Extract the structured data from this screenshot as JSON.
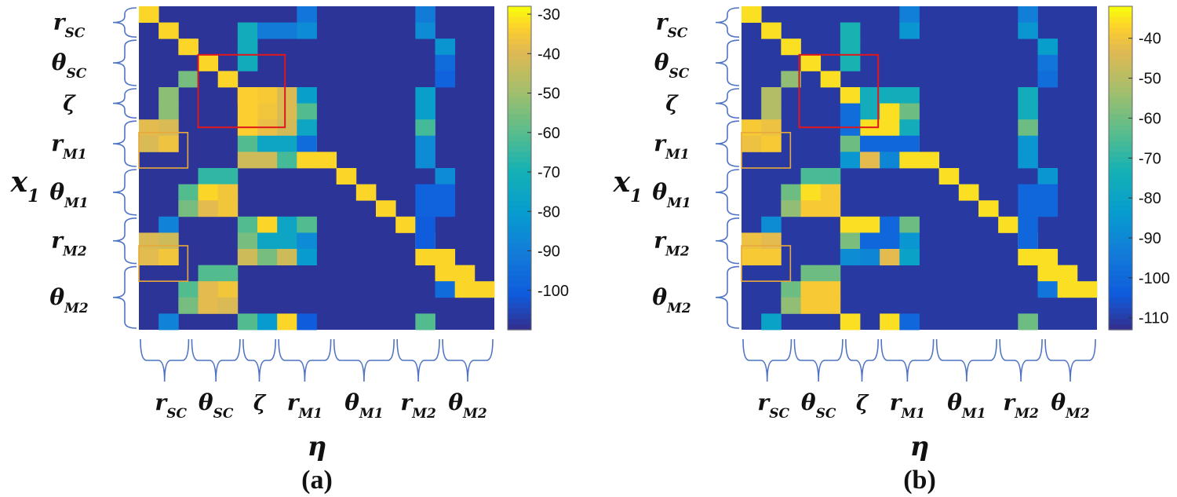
{
  "panels": [
    {
      "caption": "(a)",
      "colorbar_ticks": [
        "-30",
        "-40",
        "-50",
        "-60",
        "-70",
        "-80",
        "-90",
        "-100"
      ],
      "colorbar_range": [
        -110,
        -28
      ]
    },
    {
      "caption": "(b)",
      "colorbar_ticks": [
        "-40",
        "-50",
        "-60",
        "-70",
        "-80",
        "-90",
        "-100",
        "-110"
      ],
      "colorbar_range": [
        -113,
        -32
      ]
    }
  ],
  "axes": {
    "x_axis_symbol": "η",
    "y_axis_symbol": "x",
    "y_axis_subscript": "1",
    "y_groups": [
      {
        "sym": "r",
        "sub": "SC"
      },
      {
        "sym": "θ",
        "sub": "SC"
      },
      {
        "sym": "ζ",
        "sub": ""
      },
      {
        "sym": "r",
        "sub": "M1"
      },
      {
        "sym": "θ",
        "sub": "M1"
      },
      {
        "sym": "r",
        "sub": "M2"
      },
      {
        "sym": "θ",
        "sub": "M2"
      }
    ],
    "x_groups": [
      {
        "sym": "r",
        "sub": "SC"
      },
      {
        "sym": "θ",
        "sub": "SC"
      },
      {
        "sym": "ζ",
        "sub": ""
      },
      {
        "sym": "r",
        "sub": "M1"
      },
      {
        "sym": "θ",
        "sub": "M1"
      },
      {
        "sym": "r",
        "sub": "M2"
      },
      {
        "sym": "θ",
        "sub": "M2"
      }
    ]
  },
  "chart_data": [
    {
      "type": "heatmap",
      "title": "(a)",
      "xlabel": "η",
      "ylabel": "x1",
      "rows": 18,
      "cols": 18,
      "background_value": -108,
      "cells": [
        [
          0,
          0,
          -32
        ],
        [
          1,
          1,
          -32
        ],
        [
          2,
          2,
          -32
        ],
        [
          3,
          3,
          -32
        ],
        [
          4,
          4,
          -32
        ],
        [
          5,
          5,
          -32
        ],
        [
          6,
          6,
          -32
        ],
        [
          7,
          7,
          -32
        ],
        [
          8,
          8,
          -32
        ],
        [
          9,
          9,
          -32
        ],
        [
          10,
          10,
          -32
        ],
        [
          11,
          11,
          -32
        ],
        [
          12,
          12,
          -32
        ],
        [
          13,
          13,
          -32
        ],
        [
          14,
          14,
          -32
        ],
        [
          15,
          15,
          -32
        ],
        [
          16,
          16,
          -32
        ],
        [
          17,
          17,
          -32
        ],
        [
          1,
          5,
          -72
        ],
        [
          1,
          6,
          -90
        ],
        [
          1,
          7,
          -90
        ],
        [
          2,
          5,
          -72
        ],
        [
          3,
          5,
          -72
        ],
        [
          0,
          8,
          -92
        ],
        [
          1,
          8,
          -85
        ],
        [
          0,
          14,
          -90
        ],
        [
          1,
          14,
          -85
        ],
        [
          2,
          15,
          -82
        ],
        [
          3,
          15,
          -95
        ],
        [
          4,
          15,
          -98
        ],
        [
          4,
          2,
          -55
        ],
        [
          5,
          1,
          -52
        ],
        [
          6,
          1,
          -52
        ],
        [
          5,
          6,
          -34
        ],
        [
          5,
          7,
          -40
        ],
        [
          6,
          6,
          -35
        ],
        [
          6,
          7,
          -40
        ],
        [
          7,
          6,
          -37
        ],
        [
          7,
          7,
          -41
        ],
        [
          5,
          5,
          -33
        ],
        [
          6,
          5,
          -33
        ],
        [
          7,
          5,
          -33
        ],
        [
          5,
          8,
          -78
        ],
        [
          6,
          8,
          -60
        ],
        [
          7,
          8,
          -75
        ],
        [
          5,
          14,
          -78
        ],
        [
          6,
          14,
          -78
        ],
        [
          7,
          14,
          -62
        ],
        [
          7,
          0,
          -38
        ],
        [
          7,
          1,
          -40
        ],
        [
          8,
          0,
          -40
        ],
        [
          8,
          1,
          -36
        ],
        [
          8,
          5,
          -60
        ],
        [
          8,
          6,
          -75
        ],
        [
          8,
          7,
          -75
        ],
        [
          9,
          5,
          -42
        ],
        [
          9,
          6,
          -42
        ],
        [
          9,
          7,
          -62
        ],
        [
          8,
          8,
          -95
        ],
        [
          9,
          8,
          -32
        ],
        [
          8,
          14,
          -85
        ],
        [
          9,
          14,
          -85
        ],
        [
          10,
          3,
          -65
        ],
        [
          10,
          4,
          -65
        ],
        [
          11,
          2,
          -60
        ],
        [
          11,
          3,
          -32
        ],
        [
          11,
          4,
          -35
        ],
        [
          12,
          2,
          -55
        ],
        [
          12,
          3,
          -38
        ],
        [
          12,
          4,
          -35
        ],
        [
          11,
          14,
          -98
        ],
        [
          12,
          14,
          -98
        ],
        [
          10,
          15,
          -85
        ],
        [
          11,
          15,
          -98
        ],
        [
          12,
          15,
          -98
        ],
        [
          13,
          1,
          -88
        ],
        [
          13,
          5,
          -60
        ],
        [
          13,
          6,
          -32
        ],
        [
          13,
          7,
          -75
        ],
        [
          14,
          5,
          -55
        ],
        [
          14,
          6,
          -75
        ],
        [
          14,
          7,
          -75
        ],
        [
          15,
          5,
          -42
        ],
        [
          15,
          6,
          -55
        ],
        [
          15,
          7,
          -42
        ],
        [
          13,
          8,
          -60
        ],
        [
          14,
          8,
          -85
        ],
        [
          15,
          8,
          -80
        ],
        [
          13,
          14,
          -100
        ],
        [
          14,
          14,
          -100
        ],
        [
          15,
          14,
          -32
        ],
        [
          14,
          0,
          -40
        ],
        [
          14,
          1,
          -42
        ],
        [
          15,
          0,
          -38
        ],
        [
          15,
          1,
          -35
        ],
        [
          16,
          3,
          -60
        ],
        [
          16,
          4,
          -60
        ],
        [
          17,
          2,
          -60
        ],
        [
          17,
          3,
          -38
        ],
        [
          17,
          4,
          -35
        ],
        [
          18,
          2,
          -55
        ],
        [
          18,
          3,
          -38
        ],
        [
          18,
          4,
          -40
        ],
        [
          16,
          15,
          -32
        ],
        [
          17,
          15,
          -95
        ],
        [
          17,
          16,
          -32
        ],
        [
          19,
          1,
          -88
        ],
        [
          19,
          5,
          -60
        ],
        [
          19,
          6,
          -80
        ],
        [
          19,
          7,
          -32
        ],
        [
          19,
          8,
          -100
        ],
        [
          19,
          14,
          -60
        ],
        [
          0,
          16,
          -108
        ]
      ],
      "red_box": {
        "row_start": 3,
        "row_end": 7,
        "col_start": 3,
        "col_end": 7
      },
      "orange_boxes": [
        {
          "row_start": 8,
          "row_end": 10,
          "col_start": 0,
          "col_end": 2
        },
        {
          "row_start": 15,
          "row_end": 17,
          "col_start": 0,
          "col_end": 2
        }
      ],
      "colorbar": {
        "min": -110,
        "max": -28,
        "ticks": [
          -30,
          -40,
          -50,
          -60,
          -70,
          -80,
          -90,
          -100
        ]
      }
    },
    {
      "type": "heatmap",
      "title": "(b)",
      "xlabel": "η",
      "ylabel": "x1",
      "rows": 18,
      "cols": 18,
      "background_value": -110,
      "cells": [
        [
          0,
          0,
          -35
        ],
        [
          1,
          1,
          -35
        ],
        [
          2,
          2,
          -35
        ],
        [
          3,
          3,
          -35
        ],
        [
          4,
          4,
          -35
        ],
        [
          5,
          5,
          -35
        ],
        [
          6,
          6,
          -35
        ],
        [
          7,
          7,
          -35
        ],
        [
          8,
          8,
          -35
        ],
        [
          9,
          9,
          -35
        ],
        [
          10,
          10,
          -35
        ],
        [
          11,
          11,
          -35
        ],
        [
          12,
          12,
          -35
        ],
        [
          13,
          13,
          -35
        ],
        [
          14,
          14,
          -35
        ],
        [
          15,
          15,
          -35
        ],
        [
          16,
          16,
          -35
        ],
        [
          17,
          17,
          -35
        ],
        [
          1,
          5,
          -72
        ],
        [
          2,
          5,
          -72
        ],
        [
          3,
          5,
          -72
        ],
        [
          0,
          8,
          -92
        ],
        [
          1,
          8,
          -85
        ],
        [
          0,
          14,
          -92
        ],
        [
          1,
          14,
          -85
        ],
        [
          2,
          15,
          -82
        ],
        [
          3,
          15,
          -95
        ],
        [
          4,
          15,
          -98
        ],
        [
          4,
          2,
          -55
        ],
        [
          5,
          1,
          -50
        ],
        [
          6,
          1,
          -50
        ],
        [
          5,
          6,
          -75
        ],
        [
          5,
          7,
          -75
        ],
        [
          6,
          6,
          -75
        ],
        [
          6,
          7,
          -35
        ],
        [
          7,
          6,
          -35
        ],
        [
          7,
          7,
          -35
        ],
        [
          6,
          5,
          -98
        ],
        [
          7,
          5,
          -98
        ],
        [
          5,
          8,
          -75
        ],
        [
          6,
          8,
          -60
        ],
        [
          7,
          8,
          -75
        ],
        [
          5,
          14,
          -75
        ],
        [
          6,
          14,
          -75
        ],
        [
          7,
          14,
          -60
        ],
        [
          7,
          0,
          -38
        ],
        [
          7,
          1,
          -40
        ],
        [
          8,
          0,
          -40
        ],
        [
          8,
          1,
          -38
        ],
        [
          8,
          5,
          -60
        ],
        [
          8,
          6,
          -100
        ],
        [
          8,
          7,
          -100
        ],
        [
          9,
          5,
          -85
        ],
        [
          9,
          6,
          -42
        ],
        [
          9,
          7,
          -90
        ],
        [
          8,
          8,
          -100
        ],
        [
          9,
          8,
          -35
        ],
        [
          8,
          14,
          -85
        ],
        [
          9,
          14,
          -85
        ],
        [
          10,
          3,
          -65
        ],
        [
          10,
          4,
          -65
        ],
        [
          11,
          2,
          -60
        ],
        [
          11,
          3,
          -35
        ],
        [
          11,
          4,
          -38
        ],
        [
          12,
          2,
          -55
        ],
        [
          12,
          3,
          -38
        ],
        [
          12,
          4,
          -38
        ],
        [
          11,
          14,
          -100
        ],
        [
          12,
          14,
          -100
        ],
        [
          10,
          15,
          -85
        ],
        [
          11,
          15,
          -100
        ],
        [
          12,
          15,
          -100
        ],
        [
          13,
          1,
          -88
        ],
        [
          13,
          5,
          -35
        ],
        [
          13,
          6,
          -35
        ],
        [
          13,
          7,
          -100
        ],
        [
          14,
          5,
          -58
        ],
        [
          14,
          6,
          -100
        ],
        [
          14,
          7,
          -100
        ],
        [
          15,
          5,
          -88
        ],
        [
          15,
          6,
          -90
        ],
        [
          15,
          7,
          -42
        ],
        [
          13,
          8,
          -60
        ],
        [
          14,
          8,
          -85
        ],
        [
          15,
          8,
          -80
        ],
        [
          13,
          14,
          -100
        ],
        [
          14,
          14,
          -100
        ],
        [
          15,
          14,
          -35
        ],
        [
          14,
          0,
          -40
        ],
        [
          14,
          1,
          -42
        ],
        [
          15,
          0,
          -38
        ],
        [
          15,
          1,
          -38
        ],
        [
          16,
          3,
          -60
        ],
        [
          16,
          4,
          -60
        ],
        [
          17,
          2,
          -60
        ],
        [
          17,
          3,
          -38
        ],
        [
          17,
          4,
          -38
        ],
        [
          18,
          2,
          -55
        ],
        [
          18,
          3,
          -38
        ],
        [
          18,
          4,
          -38
        ],
        [
          16,
          15,
          -35
        ],
        [
          17,
          15,
          -95
        ],
        [
          17,
          16,
          -35
        ],
        [
          19,
          1,
          -80
        ],
        [
          19,
          5,
          -35
        ],
        [
          19,
          7,
          -35
        ],
        [
          19,
          8,
          -100
        ],
        [
          19,
          14,
          -60
        ]
      ],
      "red_box": {
        "row_start": 3,
        "row_end": 7,
        "col_start": 3,
        "col_end": 7
      },
      "orange_boxes": [
        {
          "row_start": 8,
          "row_end": 10,
          "col_start": 0,
          "col_end": 2
        },
        {
          "row_start": 15,
          "row_end": 17,
          "col_start": 0,
          "col_end": 2
        }
      ],
      "colorbar": {
        "min": -113,
        "max": -32,
        "ticks": [
          -40,
          -50,
          -60,
          -70,
          -80,
          -90,
          -100,
          -110
        ]
      }
    }
  ]
}
